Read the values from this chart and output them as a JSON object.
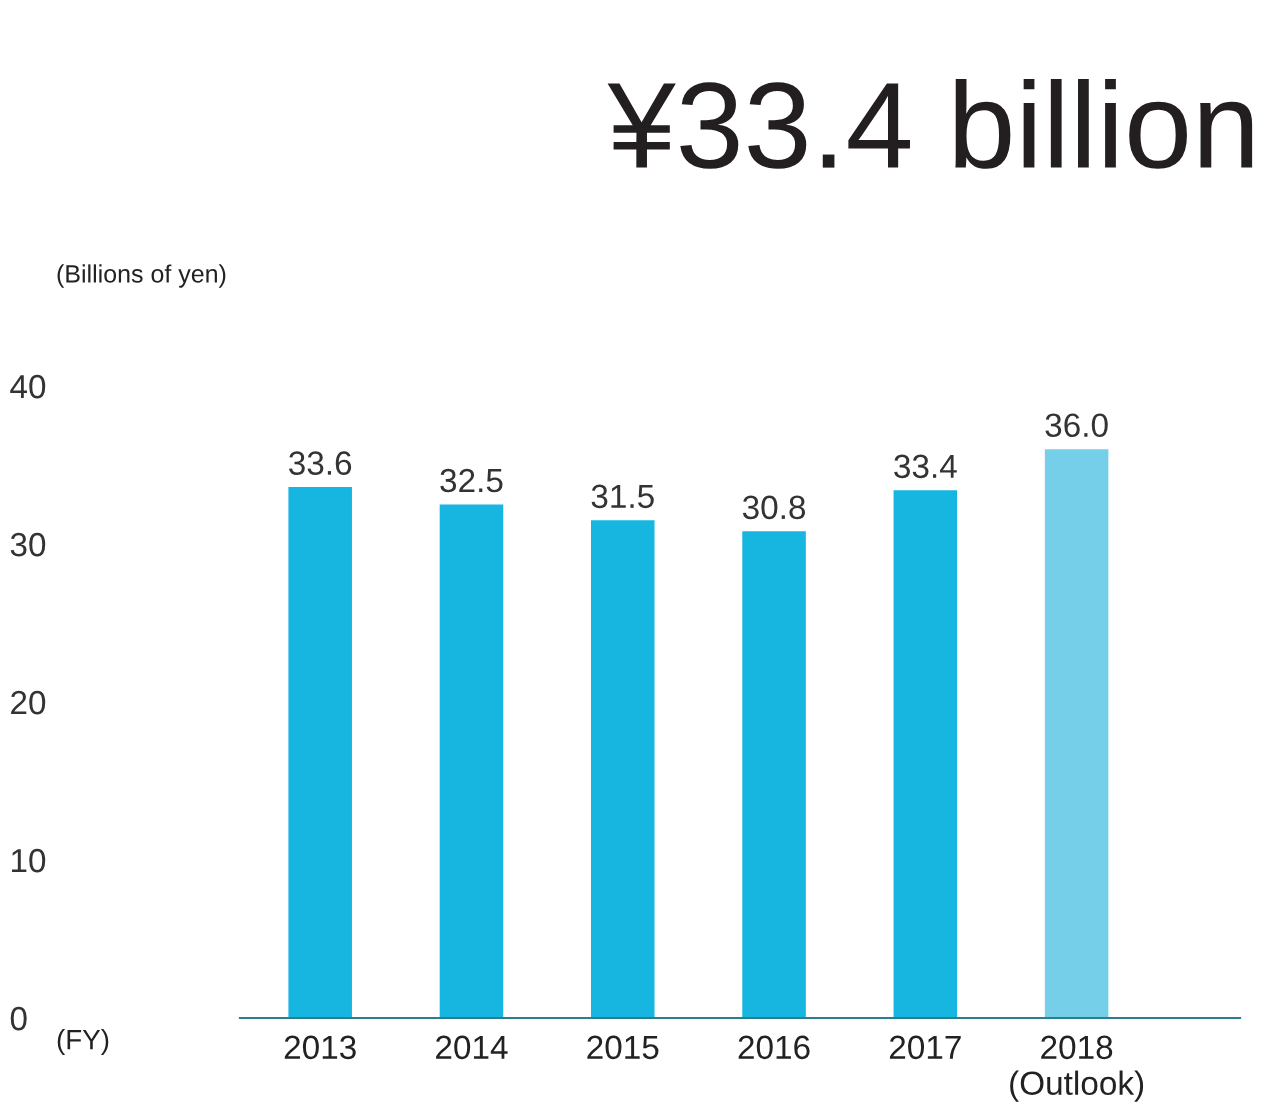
{
  "chart_data": {
    "type": "bar",
    "title": "¥33.4 billion",
    "ylabel": "(Billions of yen)",
    "categories": [
      "2013",
      "2014",
      "2015",
      "2016",
      "2017",
      "2018\n(Outlook)"
    ],
    "values": [
      33.6,
      32.5,
      31.5,
      30.8,
      33.4,
      36.0
    ],
    "colors": [
      "#17b6e0",
      "#17b6e0",
      "#17b6e0",
      "#17b6e0",
      "#17b6e0",
      "#76cfe8"
    ],
    "ylim": [
      0,
      40
    ],
    "yticks": [
      0,
      10,
      20,
      30,
      40
    ],
    "grid": false,
    "value_labels": [
      "33.6",
      "32.5",
      "31.5",
      "30.8",
      "33.4",
      "36.0"
    ],
    "annotations": [
      "(FY)"
    ]
  }
}
